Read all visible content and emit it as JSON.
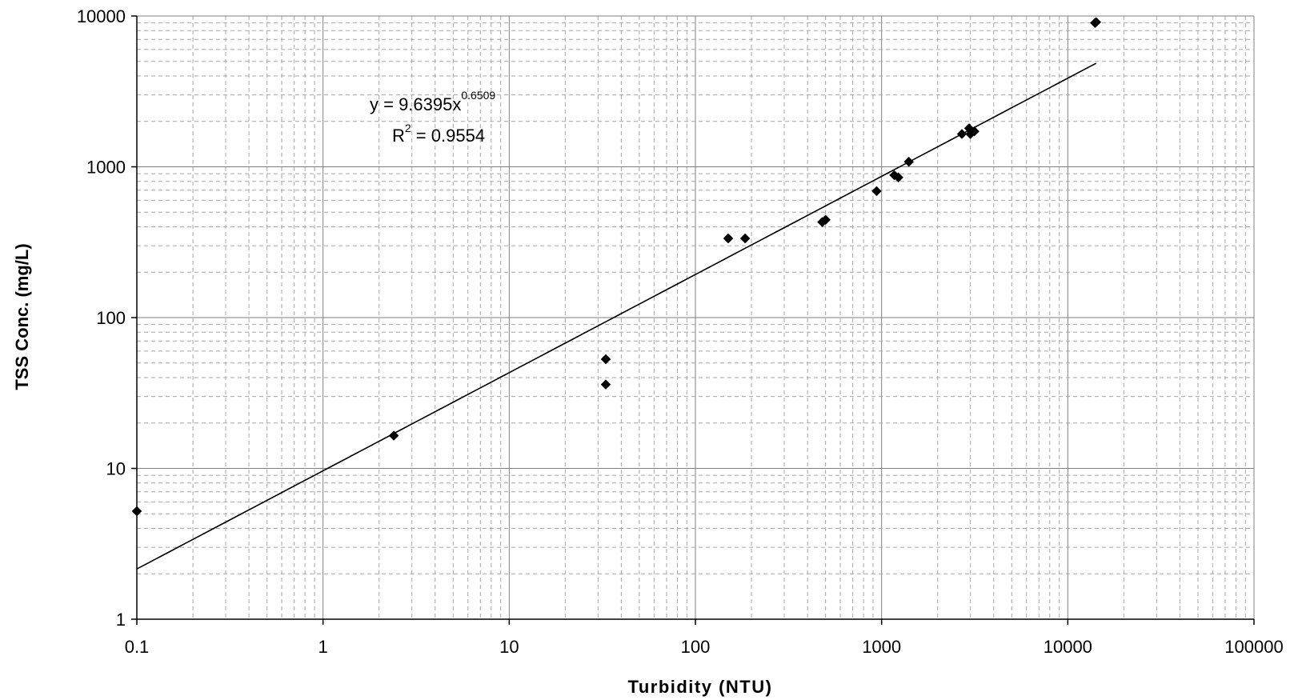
{
  "chart_data": {
    "type": "scatter",
    "title": "",
    "xlabel": "Turbidity (NTU)",
    "ylabel": "TSS Conc. (mg/L)",
    "x_scale": "log",
    "y_scale": "log",
    "xlim": [
      0.1,
      100000
    ],
    "ylim": [
      1,
      10000
    ],
    "x_tick_labels": [
      "0.1",
      "1",
      "10",
      "100",
      "1000",
      "10000",
      "100000"
    ],
    "y_tick_labels": [
      "1",
      "10",
      "100",
      "1000",
      "10000"
    ],
    "grid": true,
    "legend": "none",
    "marker": "diamond",
    "marker_color": "#000000",
    "series": [
      {
        "points": [
          {
            "x": 0.1,
            "y": 5.2
          },
          {
            "x": 2.4,
            "y": 16.5
          },
          {
            "x": 33,
            "y": 53
          },
          {
            "x": 33,
            "y": 36
          },
          {
            "x": 150,
            "y": 335
          },
          {
            "x": 185,
            "y": 335
          },
          {
            "x": 480,
            "y": 430
          },
          {
            "x": 500,
            "y": 445
          },
          {
            "x": 940,
            "y": 690
          },
          {
            "x": 1170,
            "y": 880
          },
          {
            "x": 1230,
            "y": 850
          },
          {
            "x": 1400,
            "y": 1080
          },
          {
            "x": 2700,
            "y": 1650
          },
          {
            "x": 2950,
            "y": 1800
          },
          {
            "x": 3000,
            "y": 1650
          },
          {
            "x": 3150,
            "y": 1720
          },
          {
            "x": 14000,
            "y": 9000
          },
          {
            "x": 14200,
            "y": 9100
          }
        ]
      }
    ],
    "trendline": {
      "type": "power",
      "coefficient": 9.6395,
      "exponent": 0.6509,
      "x_range": [
        0.1,
        14200
      ],
      "color": "#000000"
    },
    "annotations": {
      "equation_main": "y = 9.6395x",
      "equation_exponent": "0.6509",
      "r2_prefix": "R",
      "r2_sup": "2",
      "r2_value": " = 0.9554"
    }
  }
}
